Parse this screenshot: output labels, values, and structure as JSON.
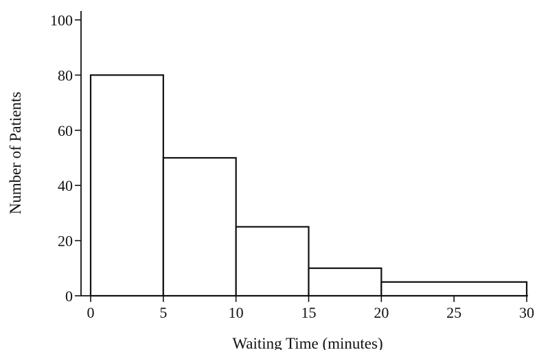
{
  "chart_data": {
    "type": "bar",
    "title": "",
    "xlabel": "Waiting Time (minutes)",
    "ylabel": "Number of Patients",
    "bins": [
      {
        "x0": 0,
        "x1": 5,
        "value": 80
      },
      {
        "x0": 5,
        "x1": 10,
        "value": 50
      },
      {
        "x0": 10,
        "x1": 15,
        "value": 25
      },
      {
        "x0": 15,
        "x1": 20,
        "value": 10
      },
      {
        "x0": 20,
        "x1": 30,
        "value": 5
      }
    ],
    "xlim": [
      0,
      30
    ],
    "ylim": [
      0,
      100
    ],
    "x_ticks": [
      "0",
      "5",
      "10",
      "15",
      "20",
      "25",
      "30"
    ],
    "y_ticks": [
      "0",
      "20",
      "40",
      "60",
      "80",
      "100"
    ],
    "grid": false,
    "legend": "none",
    "colors": {
      "bar_fill": "#ffffff",
      "stroke": "#111111"
    }
  }
}
